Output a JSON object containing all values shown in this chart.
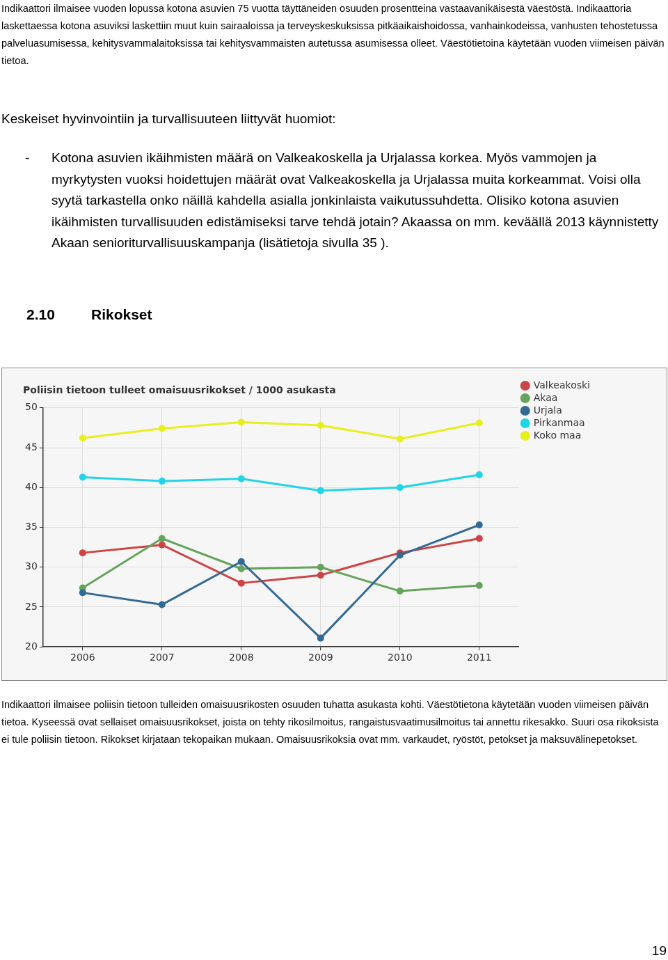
{
  "chart_data": {
    "type": "line",
    "title": "Poliisin tietoon tulleet omaisuusrikokset / 1000 asukasta",
    "categories": [
      "2006",
      "2007",
      "2008",
      "2009",
      "2010",
      "2011"
    ],
    "series": [
      {
        "name": "Valkeakoski",
        "color": "#cc4444",
        "values": [
          31.8,
          32.8,
          28.0,
          29.0,
          31.8,
          33.6
        ]
      },
      {
        "name": "Akaa",
        "color": "#66a35c",
        "values": [
          27.4,
          33.6,
          29.8,
          30.0,
          27.0,
          27.7
        ]
      },
      {
        "name": "Urjala",
        "color": "#336a94",
        "values": [
          26.8,
          25.3,
          30.7,
          21.1,
          31.5,
          35.3
        ]
      },
      {
        "name": "Pirkanmaa",
        "color": "#22d4e8",
        "values": [
          41.3,
          40.8,
          41.1,
          39.6,
          40.0,
          41.6
        ]
      },
      {
        "name": "Koko maa",
        "color": "#e8ef1e",
        "values": [
          46.2,
          47.4,
          48.2,
          47.8,
          46.1,
          48.1
        ]
      }
    ],
    "ylim": [
      20,
      50
    ],
    "yticks": [
      20,
      25,
      30,
      35,
      40,
      45,
      50
    ],
    "grid": true,
    "legend": "top right",
    "marker": "circle",
    "line_style": "solid",
    "annotations": [
      "Indikaattori ilmaisee vuoden lopussa kotona asuvien 75 vuotta täyttäneiden osuuden prosentteina vastaavanikäisestä väestöstä. Indikaattoria laskettaessa kotona asuviksi laskettiin muut kuin sairaaloissa ja terveyskeskuksissa pitkäaikaishoidossa, vanhainkodeissa, vanhusten tehostetussa palveluasumisessa, kehitysvammalaitoksissa tai kehitysvammaisten autetussa asumisessa olleet. Väestötietoina käytetään vuoden viimeisen päivän tietoa.",
      "Keskeiset hyvinvointiin ja turvallisuuteen liittyvät huomiot:",
      "-",
      "Kotona asuvien ikäihmisten määrä on Valkeakoskella ja Urjalassa korkea. Myös vammojen ja myrkytysten vuoksi hoidettujen määrät ovat Valkeakoskella ja Urjalassa muita korkeammat.  Voisi olla syytä tarkastella onko näillä kahdella asialla jonkinlaista vaikutussuhdetta.  Olisiko kotona asuvien ikäihmisten turvallisuuden edistämiseksi tarve tehdä jotain? Akaassa on mm. keväällä 2013 käynnistetty Akaan senioriturvallisuuskampanja (lisätietoja sivulla 35 ).",
      "2.10",
      "Rikokset",
      "Indikaattori ilmaisee poliisin tietoon tulleiden omaisuusrikosten osuuden tuhatta asukasta kohti. Väestötietona käytetään vuoden viimeisen päivän tietoa. Kyseessä ovat sellaiset omaisuusrikokset, joista on tehty rikosilmoitus, rangaistusvaatimusilmoitus tai annettu rikesakko. Suuri osa rikoksista ei tule poliisin tietoon. Rikokset kirjataan tekopaikan mukaan. Omaisuusrikoksia ovat mm. varkaudet, ryöstöt, petokset ja maksuvälinepetokset.",
      "19"
    ]
  }
}
